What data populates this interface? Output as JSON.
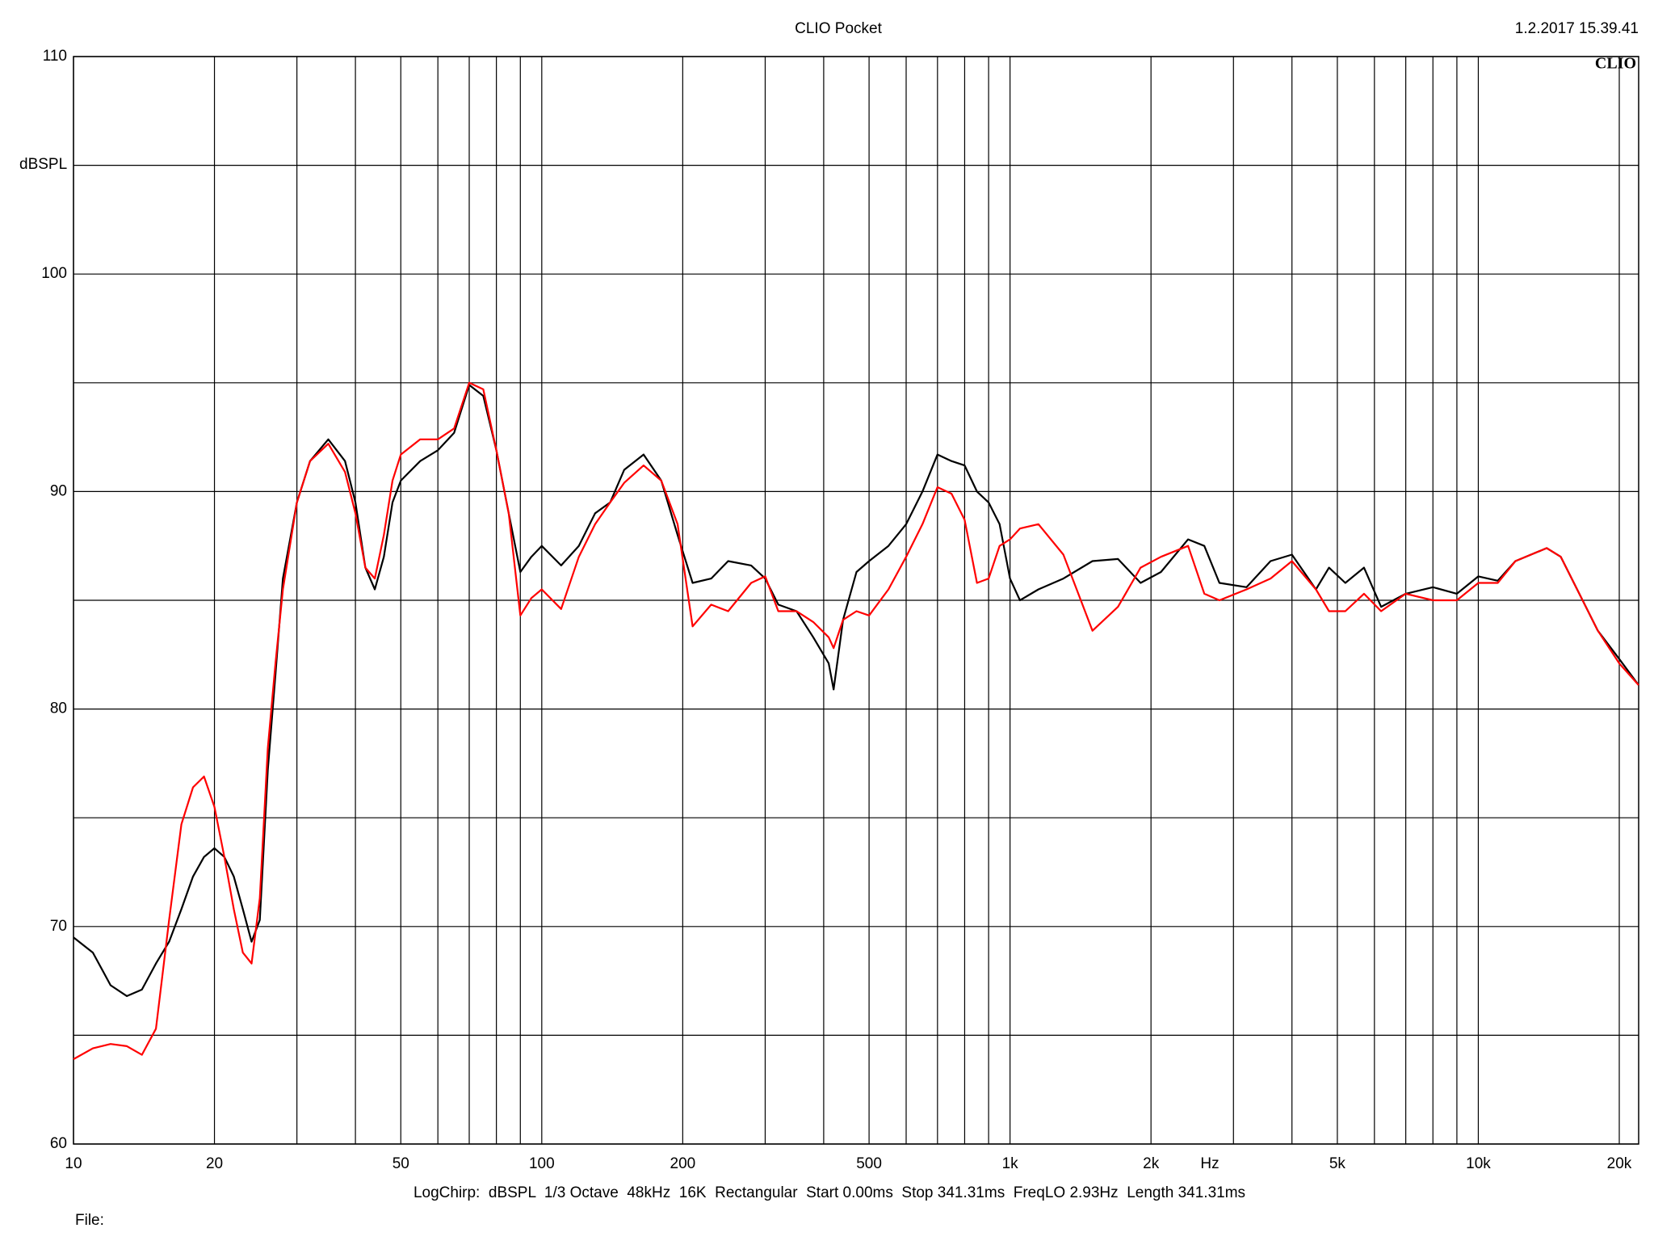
{
  "chart_data": {
    "type": "line",
    "title": "CLIO Pocket",
    "timestamp": "1.2.2017 15.39.41",
    "logo": "CLIO",
    "ylabel": "dBSPL",
    "x_unit": "Hz",
    "footer": "LogChirp:  dBSPL  1/3 Octave  48kHz  16K  Rectangular  Start 0.00ms  Stop 341.31ms  FreqLO 2.93Hz  Length 341.31ms",
    "file_label": "File:",
    "log_x": true,
    "grid": true,
    "xlim": [
      10,
      22000
    ],
    "ylim": [
      60,
      110
    ],
    "yticks": [
      60,
      70,
      80,
      90,
      100,
      110
    ],
    "yminor": [
      65,
      75,
      85,
      95,
      105
    ],
    "xticks": [
      10,
      20,
      50,
      100,
      200,
      500,
      {
        "value": 1000,
        "label": "1k"
      },
      {
        "value": 2000,
        "label": "2k"
      },
      {
        "value": 5000,
        "label": "5k"
      },
      {
        "value": 10000,
        "label": "10k"
      },
      {
        "value": 20000,
        "label": "20k"
      }
    ],
    "xminor": [
      30,
      40,
      60,
      70,
      80,
      90,
      300,
      400,
      600,
      700,
      800,
      900,
      3000,
      4000,
      6000,
      7000,
      8000,
      9000
    ],
    "x": [
      10,
      11,
      12,
      13,
      14,
      15,
      16,
      17,
      18,
      19,
      20,
      21,
      22,
      23,
      24,
      25,
      26,
      27,
      28,
      30,
      32,
      35,
      38,
      40,
      42,
      44,
      46,
      48,
      50,
      55,
      60,
      65,
      70,
      75,
      80,
      85,
      90,
      95,
      100,
      110,
      120,
      130,
      140,
      150,
      165,
      180,
      195,
      210,
      230,
      250,
      280,
      300,
      320,
      350,
      380,
      410,
      420,
      440,
      470,
      500,
      550,
      600,
      650,
      700,
      750,
      800,
      850,
      900,
      950,
      1000,
      1050,
      1150,
      1300,
      1500,
      1700,
      1900,
      2100,
      2400,
      2600,
      2800,
      3200,
      3600,
      4000,
      4500,
      4800,
      5200,
      5700,
      6200,
      7000,
      8000,
      9000,
      10000,
      11000,
      12000,
      14000,
      15000,
      16000,
      18000,
      20000,
      22000
    ],
    "series": [
      {
        "color": "#000000",
        "values": [
          69.5,
          68.8,
          67.3,
          66.8,
          67.1,
          68.3,
          69.3,
          70.8,
          72.3,
          73.2,
          73.6,
          73.2,
          72.3,
          70.8,
          69.3,
          70.3,
          77.2,
          81.6,
          86.0,
          89.5,
          91.4,
          92.4,
          91.4,
          89.5,
          86.5,
          85.5,
          87.0,
          89.5,
          90.5,
          91.4,
          91.9,
          92.7,
          94.9,
          94.4,
          91.9,
          89.0,
          86.3,
          87.0,
          87.5,
          86.6,
          87.5,
          89.0,
          89.5,
          91.0,
          91.7,
          90.5,
          88.0,
          85.8,
          86.0,
          86.8,
          86.6,
          86.0,
          84.8,
          84.5,
          83.3,
          82.1,
          80.9,
          84.1,
          86.3,
          86.8,
          87.5,
          88.5,
          90.0,
          91.7,
          91.4,
          91.2,
          90.0,
          89.5,
          88.5,
          86.0,
          85.0,
          85.5,
          86.0,
          86.8,
          86.9,
          85.8,
          86.3,
          87.8,
          87.5,
          85.8,
          85.6,
          86.8,
          87.1,
          85.5,
          86.5,
          85.8,
          86.5,
          84.7,
          85.3,
          85.6,
          85.3,
          86.1,
          85.9,
          86.8,
          87.4,
          87.0,
          85.8,
          83.6,
          82.3,
          81.1
        ]
      },
      {
        "color": "#ff0000",
        "values": [
          63.9,
          64.4,
          64.6,
          64.5,
          64.1,
          65.3,
          70.3,
          74.7,
          76.4,
          76.9,
          75.5,
          73.2,
          70.8,
          68.8,
          68.3,
          71.3,
          78.2,
          82.1,
          85.5,
          89.5,
          91.4,
          92.2,
          90.9,
          89.0,
          86.5,
          86.0,
          88.0,
          90.5,
          91.7,
          92.4,
          92.4,
          92.9,
          95.0,
          94.7,
          91.9,
          89.0,
          84.3,
          85.1,
          85.5,
          84.6,
          87.0,
          88.5,
          89.5,
          90.4,
          91.2,
          90.5,
          88.5,
          83.8,
          84.8,
          84.5,
          85.8,
          86.1,
          84.5,
          84.5,
          84.0,
          83.3,
          82.8,
          84.1,
          84.5,
          84.3,
          85.5,
          87.0,
          88.5,
          90.2,
          89.9,
          88.7,
          85.8,
          86.0,
          87.5,
          87.8,
          88.3,
          88.5,
          87.1,
          83.6,
          84.7,
          86.5,
          87.0,
          87.5,
          85.3,
          85.0,
          85.5,
          86.0,
          86.8,
          85.5,
          84.5,
          84.5,
          85.3,
          84.5,
          85.3,
          85.0,
          85.0,
          85.8,
          85.8,
          86.8,
          87.4,
          87.0,
          85.8,
          83.6,
          82.1,
          81.1
        ]
      }
    ]
  }
}
